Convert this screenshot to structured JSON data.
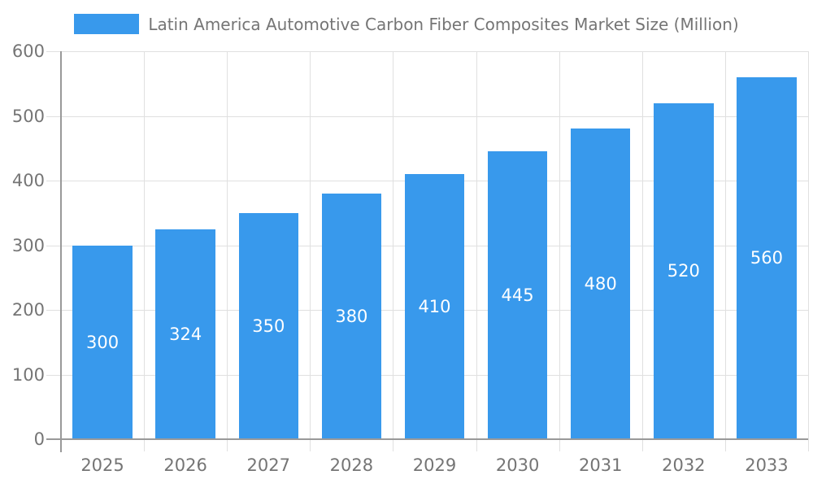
{
  "chart_data": {
    "type": "bar",
    "title": "Latin America Automotive Carbon Fiber Composites Market Size (Million)",
    "categories": [
      "2025",
      "2026",
      "2027",
      "2028",
      "2029",
      "2030",
      "2031",
      "2032",
      "2033"
    ],
    "values": [
      300,
      324,
      350,
      380,
      410,
      445,
      480,
      520,
      560
    ],
    "xlabel": "",
    "ylabel": "",
    "ylim": [
      0,
      600
    ],
    "yticks": [
      0,
      100,
      200,
      300,
      400,
      500,
      600
    ],
    "grid": true,
    "legend_position": "top-center",
    "bar_labels_inside": true
  },
  "colors": {
    "bar": "#3899EC",
    "text": "#757575",
    "gridline": "#E0E0E0",
    "axis": "#999999",
    "bar_label": "#FFFFFF",
    "background": "#FFFFFF"
  }
}
